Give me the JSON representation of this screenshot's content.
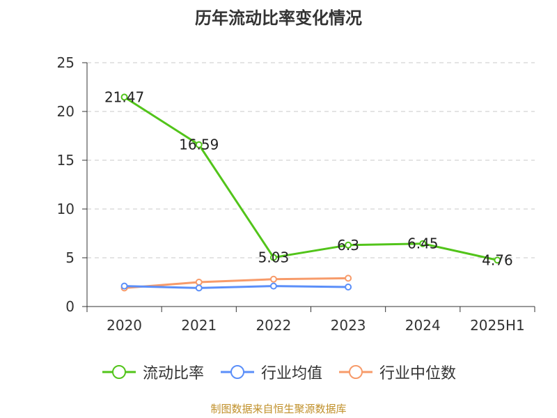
{
  "title": "历年流动比率变化情况",
  "source_note": "制图数据来自恒生聚源数据库",
  "chart_data": {
    "type": "line",
    "categories": [
      "2020",
      "2021",
      "2022",
      "2023",
      "2024",
      "2025H1"
    ],
    "ylim": [
      0,
      25
    ],
    "yticks": [
      0,
      5,
      10,
      15,
      20,
      25
    ],
    "grid": true,
    "legend_position": "bottom",
    "series": [
      {
        "name": "流动比率",
        "color": "#52c41a",
        "values": [
          21.47,
          16.59,
          5.03,
          6.3,
          6.45,
          4.76
        ],
        "data_labels": [
          "21.47",
          "16.59",
          "5.03",
          "6.3",
          "6.45",
          "4.76"
        ]
      },
      {
        "name": "行业均值",
        "color": "#5b8ff9",
        "values": [
          2.1,
          1.9,
          2.1,
          2.0,
          null,
          null
        ]
      },
      {
        "name": "行业中位数",
        "color": "#f79b6a",
        "values": [
          1.9,
          2.5,
          2.8,
          2.9,
          null,
          null
        ]
      }
    ]
  }
}
